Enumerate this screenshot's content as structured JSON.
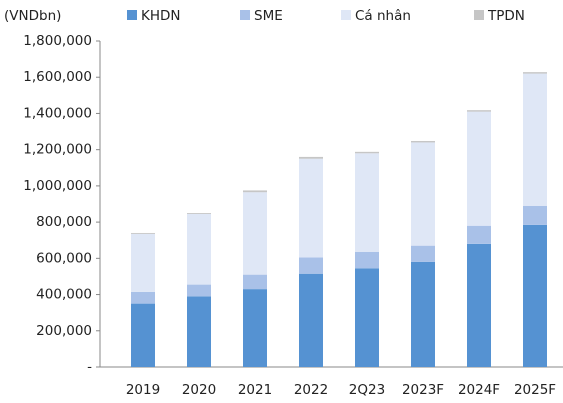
{
  "chart_data": {
    "type": "bar",
    "stacked": true,
    "y_label": "(VNDbn)",
    "categories": [
      "2019",
      "2020",
      "2021",
      "2022",
      "2Q23",
      "2023F",
      "2024F",
      "2025F"
    ],
    "series": [
      {
        "name": "KHDN",
        "color": "#5592d2",
        "values": [
          350000,
          390000,
          430000,
          515000,
          545000,
          580000,
          680000,
          785000
        ]
      },
      {
        "name": "SME",
        "color": "#a9c1e8",
        "values": [
          65000,
          65000,
          80000,
          90000,
          90000,
          90000,
          100000,
          105000
        ]
      },
      {
        "name": "Cá nhân",
        "color": "#dfe7f6",
        "values": [
          320000,
          390000,
          455000,
          545000,
          545000,
          570000,
          630000,
          730000
        ]
      },
      {
        "name": "TPDN",
        "color": "#c6c6c6",
        "values": [
          5000,
          5000,
          10000,
          10000,
          8000,
          8000,
          8000,
          8000
        ]
      }
    ],
    "ylim": [
      0,
      1800000
    ],
    "yticks": [
      {
        "value": 0,
        "label": "-"
      },
      {
        "value": 200000,
        "label": "200,000"
      },
      {
        "value": 400000,
        "label": "400,000"
      },
      {
        "value": 600000,
        "label": "600,000"
      },
      {
        "value": 800000,
        "label": "800,000"
      },
      {
        "value": 1000000,
        "label": "1,000,000"
      },
      {
        "value": 1200000,
        "label": "1,200,000"
      },
      {
        "value": 1400000,
        "label": "1,400,000"
      },
      {
        "value": 1600000,
        "label": "1,600,000"
      },
      {
        "value": 1800000,
        "label": "1,800,000"
      }
    ],
    "grid": false
  }
}
